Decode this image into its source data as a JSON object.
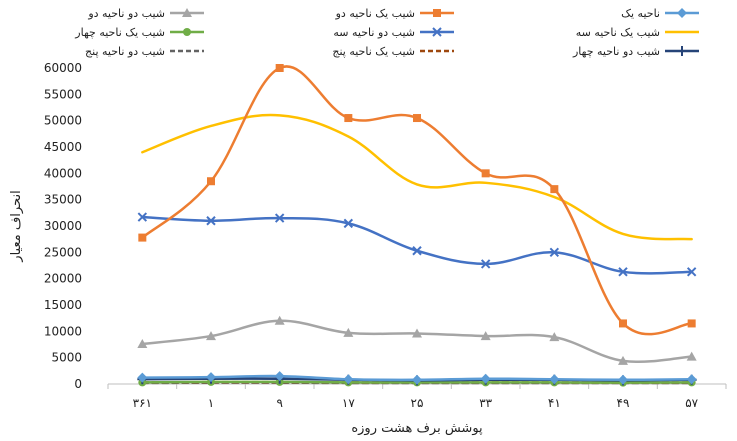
{
  "chart_data": {
    "type": "line",
    "title": "",
    "xlabel": "پوشش برف هشت روزه",
    "ylabel": "انحراف معیار",
    "categories": [
      "۳۶۱",
      "۱",
      "۹",
      "۱۷",
      "۲۵",
      "۳۳",
      "۴۱",
      "۴۹",
      "۵۷"
    ],
    "ylim": [
      0,
      60000
    ],
    "yticks": [
      "0",
      "5000",
      "10000",
      "15000",
      "20000",
      "25000",
      "30000",
      "35000",
      "40000",
      "45000",
      "50000",
      "55000",
      "60000"
    ],
    "grid": false,
    "legend_position": "top",
    "series": [
      {
        "name": "ناحیه یک",
        "color": "#5b9bd5",
        "marker": "diamond",
        "dash": "solid",
        "values": [
          1200,
          1300,
          1500,
          900,
          800,
          1000,
          900,
          800,
          900
        ]
      },
      {
        "name": "شیب یک ناحیه دو",
        "color": "#ed7d31",
        "marker": "square",
        "dash": "solid",
        "values": [
          27800,
          38500,
          60000,
          50500,
          50500,
          40000,
          37000,
          11500,
          11500
        ]
      },
      {
        "name": "شیب دو ناحیه دو",
        "color": "#a5a5a5",
        "marker": "triangle",
        "dash": "solid",
        "values": [
          7600,
          9100,
          12000,
          9700,
          9600,
          9100,
          8900,
          4400,
          5200
        ]
      },
      {
        "name": "شیب یک ناحیه سه",
        "color": "#ffc000",
        "marker": "none",
        "dash": "solid",
        "values": [
          44000,
          49000,
          51000,
          47000,
          37900,
          38200,
          35500,
          28500,
          27500
        ]
      },
      {
        "name": "شیب دو ناحیه سه",
        "color": "#4472c4",
        "marker": "x",
        "dash": "solid",
        "values": [
          31700,
          31000,
          31500,
          30500,
          25300,
          22800,
          25000,
          21300,
          21300
        ]
      },
      {
        "name": "شیب یک ناحیه چهار",
        "color": "#70ad47",
        "marker": "circle",
        "dash": "solid",
        "values": [
          300,
          400,
          400,
          300,
          300,
          300,
          300,
          250,
          300
        ]
      },
      {
        "name": "شیب دو ناحیه چهار",
        "color": "#264478",
        "marker": "plus",
        "dash": "solid",
        "values": [
          900,
          1000,
          1000,
          800,
          700,
          800,
          800,
          700,
          800
        ]
      },
      {
        "name": "شیب یک ناحیه پنج",
        "color": "#9e480e",
        "marker": "none",
        "dash": "dash",
        "values": [
          300,
          350,
          350,
          300,
          300,
          300,
          300,
          250,
          300
        ]
      },
      {
        "name": "شیب دو ناحیه پنج",
        "color": "#636363",
        "marker": "none",
        "dash": "dash",
        "values": [
          200,
          250,
          250,
          200,
          200,
          200,
          200,
          200,
          200
        ]
      }
    ]
  }
}
